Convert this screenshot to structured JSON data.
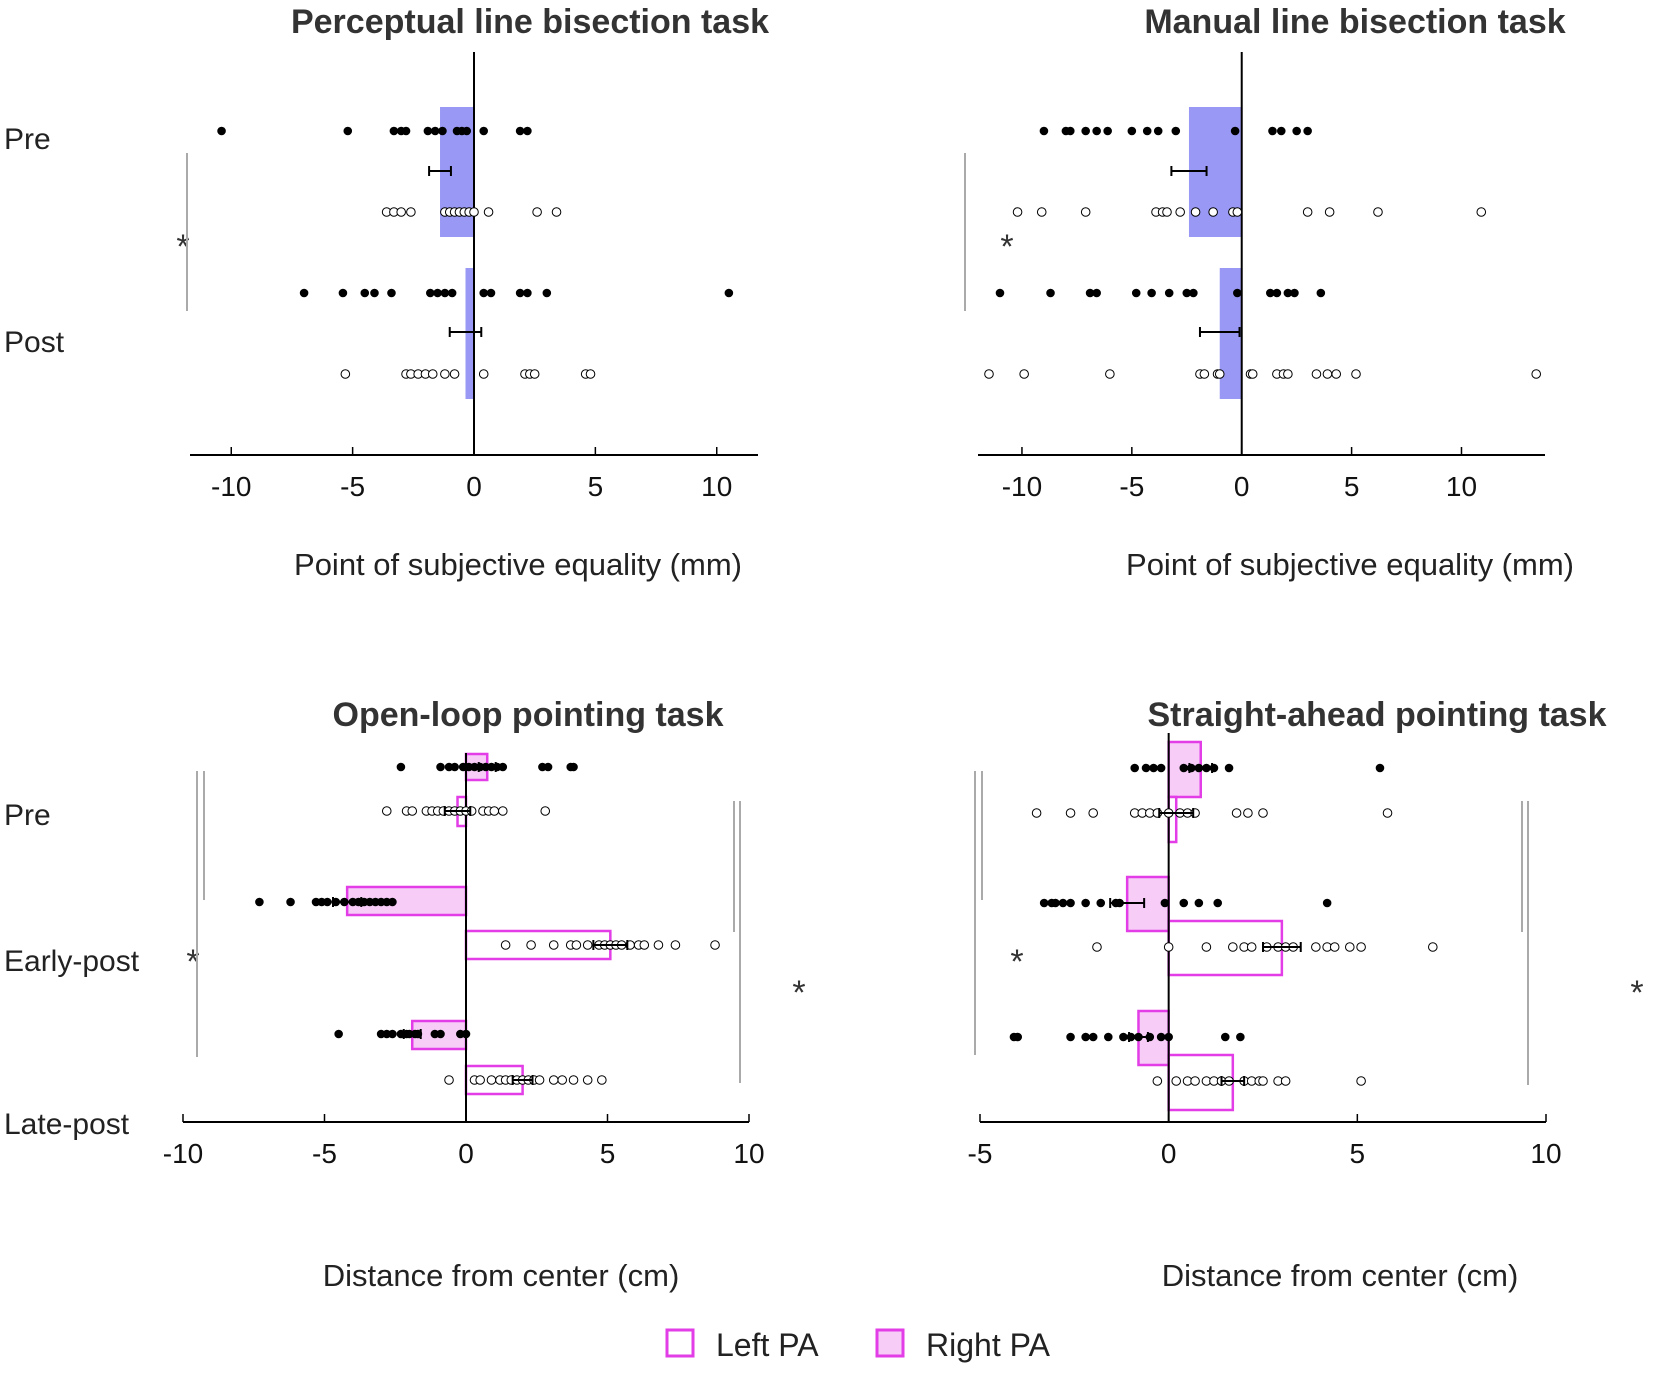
{
  "colors": {
    "bias_bar": "#9999f5",
    "pa": "#e23de6",
    "pa_fill": "#f7cdf8",
    "axis": "#000000",
    "sig_line": "#aaaaaa",
    "point": "#000000"
  },
  "legend": {
    "left_pa": "Left PA",
    "right_pa": "Right PA"
  },
  "chart_data": [
    {
      "id": "perceptual",
      "type": "bar",
      "orientation": "horizontal",
      "title": "Perceptual line bisection task",
      "xlabel": "Point of subjective equality (mm)",
      "xlim": [
        -11.7,
        11.7
      ],
      "xticks": [
        -10,
        -5,
        0,
        5,
        10
      ],
      "xtick_labels": [
        "-10",
        "-5",
        "0",
        "5",
        "10"
      ],
      "categories": [
        "Pre",
        "Post"
      ],
      "sig_label": "*",
      "groups": [
        {
          "label": "Pre",
          "mean": -1.4,
          "err": 0.45,
          "filled": [
            -10.4,
            -5.2,
            -3.3,
            -3.0,
            -2.8,
            -1.9,
            -1.6,
            -1.3,
            -0.7,
            -0.5,
            -0.3,
            0.4,
            1.9,
            2.2
          ],
          "open": [
            -3.6,
            -3.3,
            -3.0,
            -2.6,
            -1.2,
            -1.0,
            -0.8,
            -0.6,
            -0.4,
            -0.2,
            0.0,
            0.6,
            2.6,
            3.4
          ]
        },
        {
          "label": "Post",
          "mean": -0.35,
          "err": 0.65,
          "filled": [
            -7.0,
            -5.4,
            -4.5,
            -4.1,
            -3.4,
            -1.8,
            -1.5,
            -1.2,
            -0.9,
            0.4,
            0.7,
            1.9,
            2.2,
            3.0,
            10.5
          ],
          "open": [
            -5.3,
            -2.8,
            -2.6,
            -2.3,
            -2.0,
            -1.7,
            -1.2,
            -0.8,
            0.4,
            2.1,
            2.3,
            2.5,
            4.6,
            4.8
          ]
        }
      ]
    },
    {
      "id": "manual",
      "type": "bar",
      "orientation": "horizontal",
      "title": "Manual line bisection task",
      "xlabel": "Point of subjective equality (mm)",
      "xlim": [
        -12.0,
        13.8
      ],
      "xticks": [
        -10,
        -5,
        0,
        5,
        10
      ],
      "xtick_labels": [
        "-10",
        "-5",
        "0",
        "5",
        "10"
      ],
      "categories": [
        "Pre",
        "Post"
      ],
      "sig_label": "*",
      "groups": [
        {
          "label": "Pre",
          "mean": -2.4,
          "err": 0.8,
          "filled": [
            -9.0,
            -8.0,
            -7.8,
            -7.1,
            -6.6,
            -6.1,
            -5.0,
            -4.3,
            -3.8,
            -3.0,
            -0.3,
            1.4,
            1.8,
            2.5,
            3.0
          ],
          "open": [
            -10.2,
            -9.1,
            -7.1,
            -3.9,
            -3.6,
            -3.4,
            -2.8,
            -2.1,
            -1.3,
            -0.4,
            -0.2,
            3.0,
            4.0,
            6.2,
            10.9
          ]
        },
        {
          "label": "Post",
          "mean": -1.0,
          "err": 0.9,
          "filled": [
            -11.0,
            -8.7,
            -6.9,
            -6.6,
            -4.8,
            -4.1,
            -3.3,
            -2.5,
            -2.2,
            -0.2,
            1.3,
            1.6,
            2.1,
            2.4,
            3.6
          ],
          "open": [
            -11.5,
            -9.9,
            -6.0,
            -1.9,
            -1.7,
            -1.1,
            -1.0,
            0.4,
            0.5,
            1.6,
            1.9,
            2.1,
            3.4,
            3.9,
            4.3,
            5.2,
            13.4
          ]
        }
      ]
    },
    {
      "id": "openloop",
      "type": "bar",
      "orientation": "horizontal",
      "title": "Open-loop pointing task",
      "xlabel": "Distance from center (cm)",
      "xlim": [
        -10.0,
        10.0
      ],
      "xticks": [
        -10,
        -5,
        0,
        5,
        10
      ],
      "xtick_labels": [
        "-10",
        "-5",
        "0",
        "5",
        "10"
      ],
      "categories": [
        "Pre",
        "Early-post",
        "Late-post"
      ],
      "sig_left": "*",
      "sig_right": "*",
      "groups": [
        {
          "label": "Pre",
          "right": {
            "mean": 0.75,
            "err": 0.3,
            "points": [
              -2.3,
              -0.9,
              -0.6,
              -0.4,
              -0.1,
              0.1,
              0.3,
              0.5,
              0.7,
              0.9,
              1.1,
              1.3,
              2.7,
              2.9,
              3.7,
              3.8
            ]
          },
          "left": {
            "mean": -0.3,
            "err": 0.45,
            "points": [
              -2.8,
              -2.1,
              -1.9,
              -1.4,
              -1.2,
              -1.0,
              -0.8,
              -0.6,
              -0.4,
              -0.2,
              0.0,
              0.2,
              0.6,
              0.8,
              1.0,
              1.3,
              2.8
            ]
          }
        },
        {
          "label": "Early-post",
          "right": {
            "mean": -4.2,
            "err": 0.5,
            "points": [
              -7.3,
              -6.2,
              -5.3,
              -5.1,
              -4.9,
              -4.6,
              -4.3,
              -4.0,
              -3.8,
              -3.6,
              -3.4,
              -3.2,
              -3.0,
              -2.8,
              -2.6
            ]
          },
          "left": {
            "mean": 5.1,
            "err": 0.6,
            "points": [
              1.4,
              2.3,
              3.1,
              3.7,
              3.9,
              4.3,
              4.7,
              4.9,
              5.1,
              5.3,
              5.5,
              5.8,
              6.1,
              6.3,
              6.8,
              7.4,
              8.8
            ]
          }
        },
        {
          "label": "Late-post",
          "right": {
            "mean": -1.9,
            "err": 0.3,
            "points": [
              -4.5,
              -3.0,
              -2.8,
              -2.6,
              -2.3,
              -2.1,
              -2.0,
              -1.8,
              -1.7,
              -1.1,
              -0.9,
              -0.2,
              0.0
            ]
          },
          "left": {
            "mean": 2.0,
            "err": 0.35,
            "points": [
              -0.6,
              0.3,
              0.5,
              0.9,
              1.2,
              1.4,
              1.6,
              1.8,
              2.0,
              2.2,
              2.4,
              2.6,
              3.1,
              3.4,
              3.8,
              4.3,
              4.8
            ]
          }
        }
      ]
    },
    {
      "id": "straightahead",
      "type": "bar",
      "orientation": "horizontal",
      "title": "Straight-ahead pointing task",
      "xlabel": "Distance from center (cm)",
      "xlim": [
        -5.0,
        10.0
      ],
      "xticks": [
        -5,
        0,
        5,
        10
      ],
      "xtick_labels": [
        "-5",
        "0",
        "5",
        "10"
      ],
      "categories": [
        "Pre",
        "Early-post",
        "Late-post"
      ],
      "sig_left": "*",
      "sig_right": "*",
      "groups": [
        {
          "label": "Pre",
          "right": {
            "mean": 0.85,
            "err": 0.3,
            "points": [
              -0.9,
              -0.6,
              -0.4,
              -0.2,
              0.4,
              0.6,
              0.8,
              1.0,
              1.2,
              1.6,
              5.6
            ]
          },
          "left": {
            "mean": 0.2,
            "err": 0.45,
            "points": [
              -3.5,
              -2.6,
              -2.0,
              -0.9,
              -0.7,
              -0.5,
              -0.3,
              0.0,
              0.3,
              0.5,
              0.7,
              1.8,
              2.1,
              2.5,
              5.8
            ]
          }
        },
        {
          "label": "Early-post",
          "right": {
            "mean": -1.1,
            "err": 0.45,
            "points": [
              -3.3,
              -3.1,
              -3.0,
              -2.8,
              -2.6,
              -2.2,
              -1.8,
              -1.4,
              -1.3,
              -0.1,
              0.4,
              0.8,
              1.3,
              4.2
            ]
          },
          "left": {
            "mean": 3.0,
            "err": 0.5,
            "points": [
              -1.9,
              0.0,
              1.0,
              1.7,
              2.0,
              2.2,
              2.6,
              2.9,
              3.1,
              3.3,
              3.9,
              4.2,
              4.4,
              4.8,
              5.1,
              7.0
            ]
          }
        },
        {
          "label": "Late-post",
          "right": {
            "mean": -0.8,
            "err": 0.25,
            "points": [
              -4.1,
              -4.0,
              -2.6,
              -2.2,
              -2.0,
              -1.6,
              -1.2,
              -1.0,
              -0.8,
              -0.5,
              -0.2,
              0.0,
              1.5,
              1.9
            ]
          },
          "left": {
            "mean": 1.7,
            "err": 0.3,
            "points": [
              -0.3,
              0.2,
              0.5,
              0.7,
              1.0,
              1.2,
              1.4,
              1.6,
              2.0,
              2.2,
              2.4,
              2.5,
              2.9,
              3.1,
              5.1
            ]
          }
        }
      ]
    }
  ]
}
